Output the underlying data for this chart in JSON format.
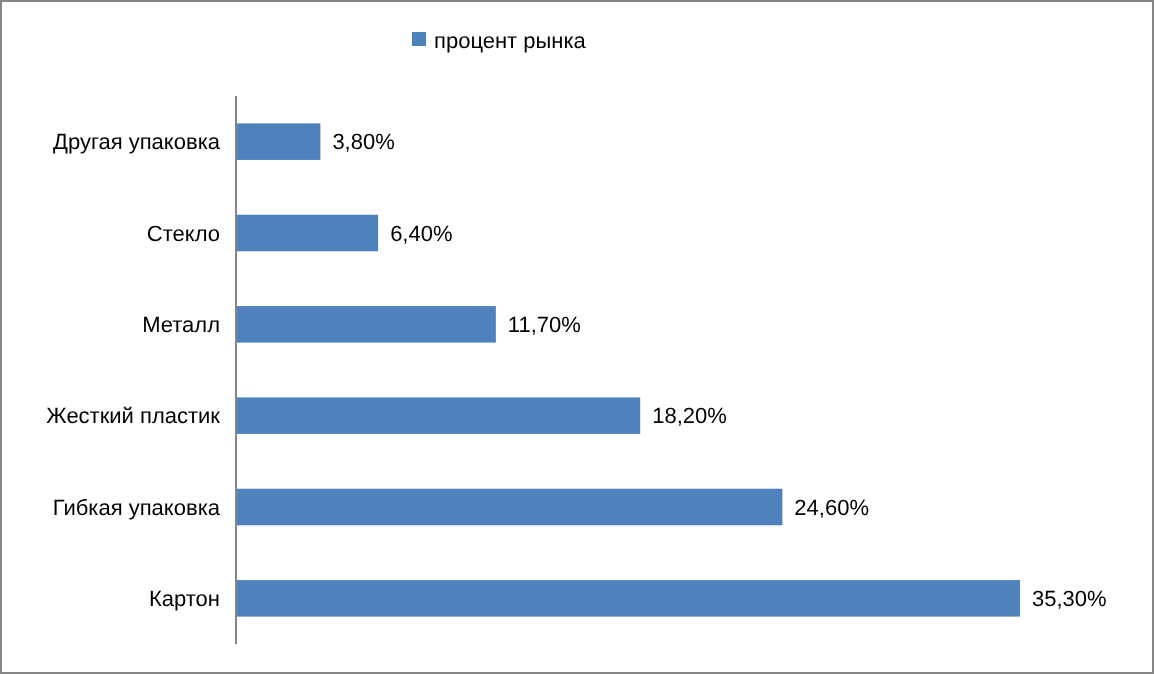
{
  "chart_data": {
    "type": "bar",
    "orientation": "horizontal",
    "categories": [
      "Другая упаковка",
      "Стекло",
      "Металл",
      "Жесткий пластик",
      "Гибкая упаковка",
      "Картон"
    ],
    "series": [
      {
        "name": "процент рынка",
        "color": "#4f81bd",
        "values": [
          3.8,
          6.4,
          11.7,
          18.2,
          24.6,
          35.3
        ],
        "value_labels": [
          "3,80%",
          "6,40%",
          "11,70%",
          "18,20%",
          "24,60%",
          "35,30%"
        ]
      }
    ],
    "legend": "top"
  }
}
